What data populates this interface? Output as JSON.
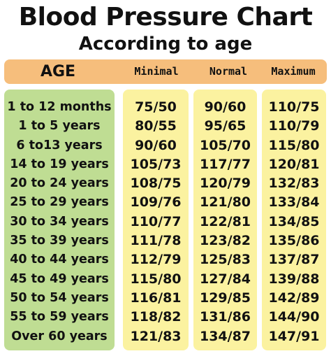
{
  "title": "Blood Pressure Chart",
  "subtitle": "According to age",
  "headers": {
    "age": "AGE",
    "minimal": "Minimal",
    "normal": "Normal",
    "maximum": "Maximum"
  },
  "rows": [
    {
      "age": "1 to 12 months",
      "minimal": "75/50",
      "normal": "90/60",
      "maximum": "110/75"
    },
    {
      "age": "1 to 5 years",
      "minimal": "80/55",
      "normal": "95/65",
      "maximum": "110/79"
    },
    {
      "age": "6 to13 years",
      "minimal": "90/60",
      "normal": "105/70",
      "maximum": "115/80"
    },
    {
      "age": "14 to 19 years",
      "minimal": "105/73",
      "normal": "117/77",
      "maximum": "120/81"
    },
    {
      "age": "20 to 24 years",
      "minimal": "108/75",
      "normal": "120/79",
      "maximum": "132/83"
    },
    {
      "age": "25 to 29 years",
      "minimal": "109/76",
      "normal": "121/80",
      "maximum": "133/84"
    },
    {
      "age": "30 to 34 years",
      "minimal": "110/77",
      "normal": "122/81",
      "maximum": "134/85"
    },
    {
      "age": "35 to 39 years",
      "minimal": "111/78",
      "normal": "123/82",
      "maximum": "135/86"
    },
    {
      "age": "40 to 44 years",
      "minimal": "112/79",
      "normal": "125/83",
      "maximum": "137/87"
    },
    {
      "age": "45 to 49 years",
      "minimal": "115/80",
      "normal": "127/84",
      "maximum": "139/88"
    },
    {
      "age": "50 to 54 years",
      "minimal": "116/81",
      "normal": "129/85",
      "maximum": "142/89"
    },
    {
      "age": "55 to 59 years",
      "minimal": "118/82",
      "normal": "131/86",
      "maximum": "144/90"
    },
    {
      "age": "Over 60 years",
      "minimal": "121/83",
      "normal": "134/87",
      "maximum": "147/91"
    }
  ],
  "colors": {
    "header_bar": "#f6be7c",
    "age_column": "#bfdd93",
    "value_columns": "#fbf2a0"
  }
}
